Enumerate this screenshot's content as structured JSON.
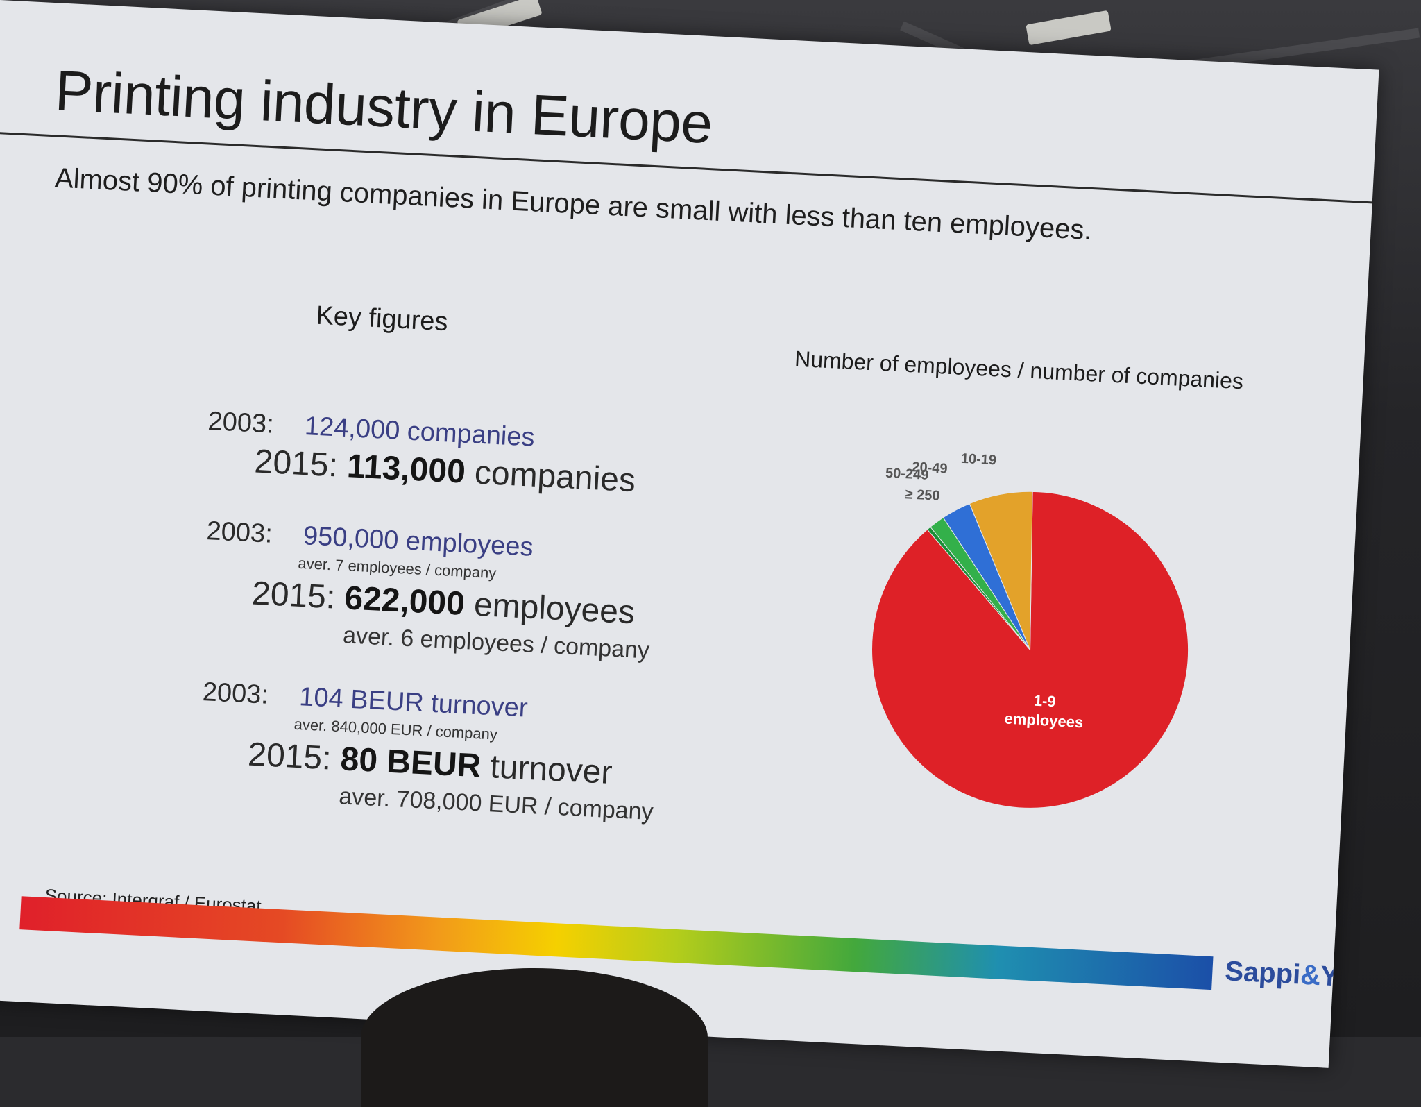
{
  "slide": {
    "title": "Printing industry in Europe",
    "subtitle": "Almost 90% of printing companies in Europe are small with less than ten employees.",
    "key_figures_heading": "Key figures",
    "companies": {
      "y2003_label": "2003:",
      "y2003_value": "124,000",
      "y2003_unit": "companies",
      "y2015_label": "2015:",
      "y2015_value": "113,000",
      "y2015_unit": "companies"
    },
    "employees": {
      "y2003_label": "2003:",
      "y2003_value": "950,000",
      "y2003_unit": "employees",
      "y2003_aver": "aver. 7 employees / company",
      "y2015_label": "2015:",
      "y2015_value": "622,000",
      "y2015_unit": "employees",
      "y2015_aver": "aver. 6 employees / company"
    },
    "turnover": {
      "y2003_label": "2003:",
      "y2003_value": "104 BEUR",
      "y2003_unit": "turnover",
      "y2003_aver": "aver. 840,000 EUR / company",
      "y2015_label": "2015:",
      "y2015_value": "80 BEUR",
      "y2015_unit": "turnover",
      "y2015_aver": "aver. 708,000 EUR / company"
    },
    "source": "Source: Intergraf / Eurostat",
    "brand_left": "Sappi",
    "brand_amp": "&",
    "brand_right": "You"
  },
  "chart_data": {
    "type": "pie",
    "title": "Number of employees / number of companies",
    "slices": [
      {
        "label": "1-9 employees",
        "value": 88.5,
        "color": "#de2127"
      },
      {
        "label": "10-19",
        "value": 6.5,
        "color": "#e3a22a"
      },
      {
        "label": "20-49",
        "value": 3.0,
        "color": "#2f6fd6"
      },
      {
        "label": "50-249",
        "value": 1.6,
        "color": "#33b04a"
      },
      {
        "label": "≥ 250",
        "value": 0.4,
        "color": "#1b8f36"
      }
    ]
  }
}
